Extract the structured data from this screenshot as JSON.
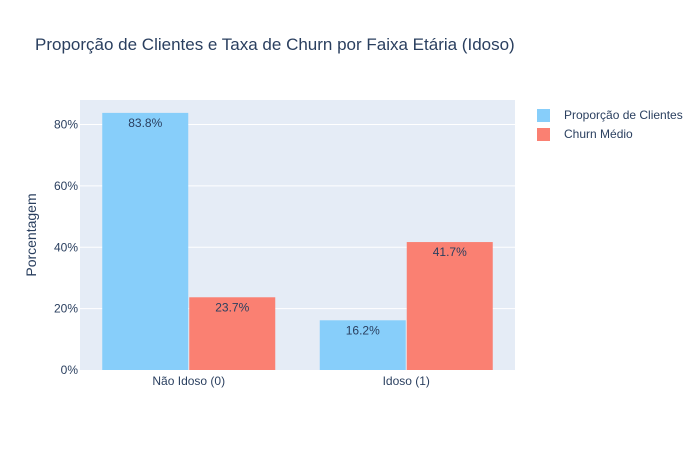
{
  "chart_data": {
    "type": "bar",
    "title": "Proporção de Clientes e Taxa de Churn por Faixa Etária (Idoso)",
    "xlabel": "",
    "ylabel": "Porcentagem",
    "categories": [
      "Não Idoso (0)",
      "Idoso (1)"
    ],
    "series": [
      {
        "name": "Proporção de Clientes",
        "values": [
          83.8,
          16.2
        ],
        "labels": [
          "83.8%",
          "16.2%"
        ],
        "color": "#87cefa"
      },
      {
        "name": "Churn Médio",
        "values": [
          23.7,
          41.7
        ],
        "labels": [
          "23.7%",
          "41.7%"
        ],
        "color": "#fa8072"
      }
    ],
    "ylim": [
      0,
      88
    ],
    "yticks": [
      0,
      20,
      40,
      60,
      80
    ],
    "ytick_labels": [
      "0%",
      "20%",
      "40%",
      "60%",
      "80%"
    ],
    "grid": true,
    "legend_position": "top-right",
    "plot_background": "#e5ecf6"
  }
}
